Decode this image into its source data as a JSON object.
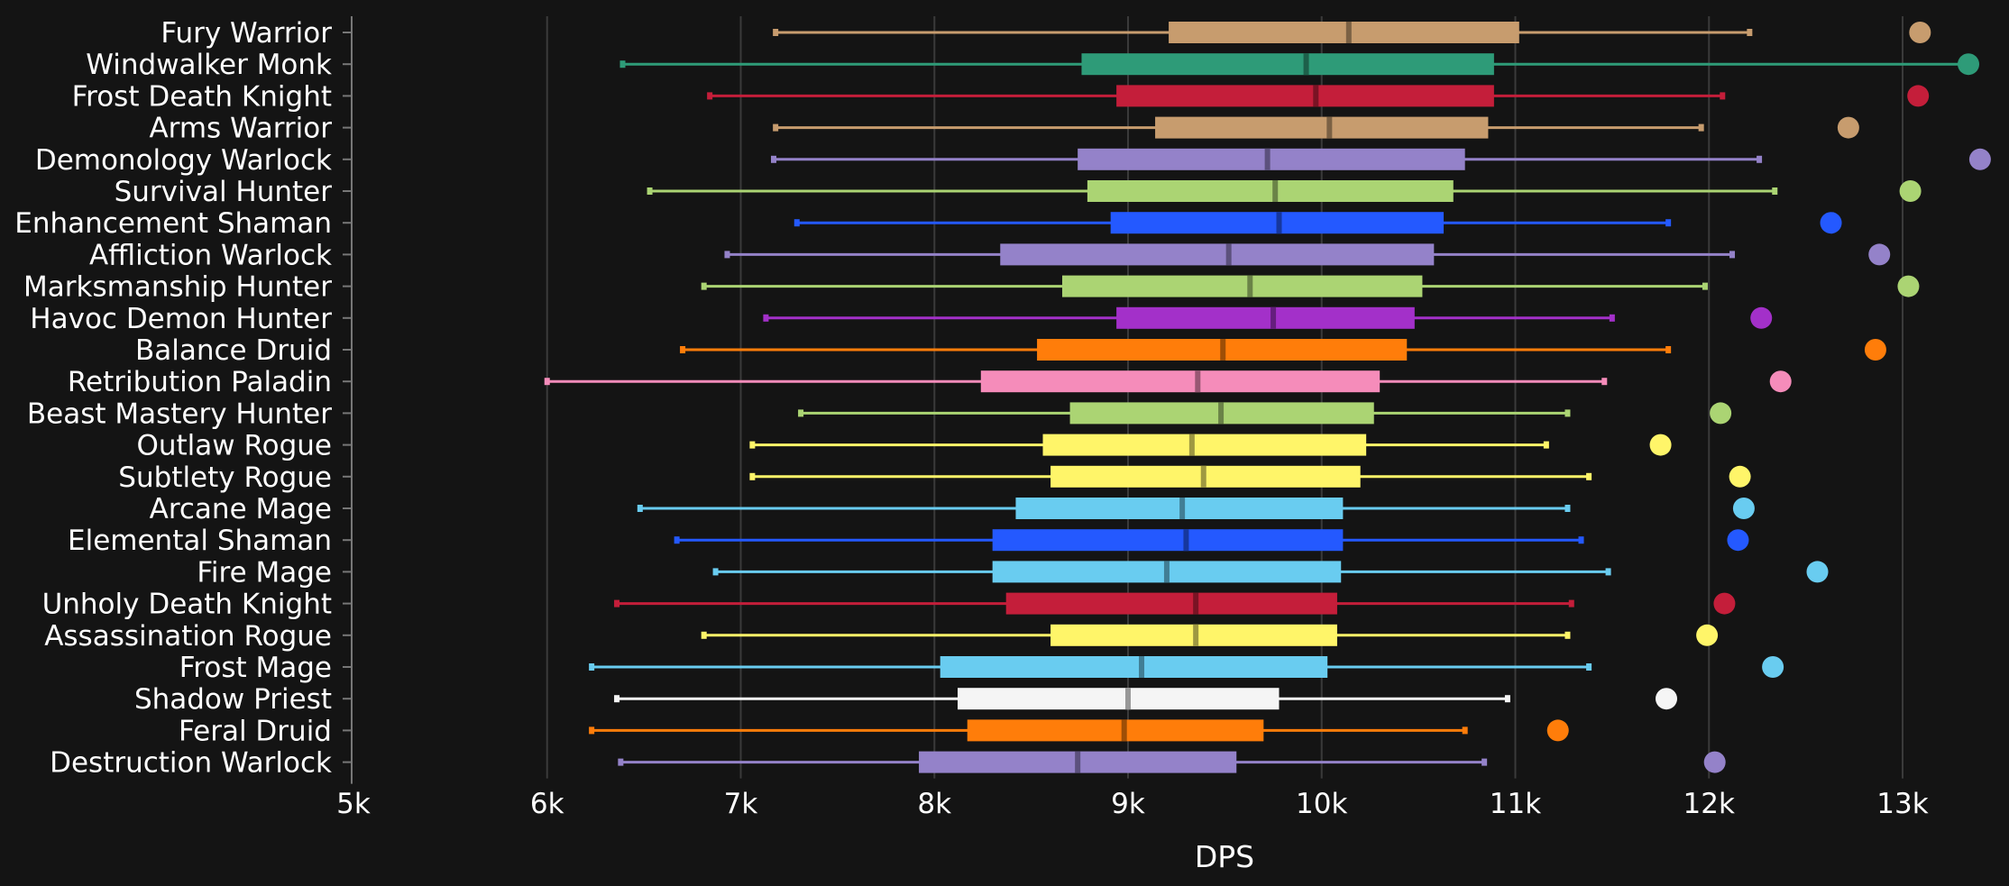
{
  "chart_data": {
    "type": "box",
    "title": "",
    "xlabel": "DPS",
    "ylabel": "",
    "xlim": [
      5000,
      13000
    ],
    "x_ticks": [
      {
        "value": 5000,
        "label": "5k"
      },
      {
        "value": 6000,
        "label": "6k"
      },
      {
        "value": 7000,
        "label": "7k"
      },
      {
        "value": 8000,
        "label": "8k"
      },
      {
        "value": 9000,
        "label": "9k"
      },
      {
        "value": 10000,
        "label": "10k"
      },
      {
        "value": 11000,
        "label": "11k"
      },
      {
        "value": 12000,
        "label": "12k"
      },
      {
        "value": 13000,
        "label": "13k"
      }
    ],
    "grid": "vertical",
    "series": [
      {
        "name": "Fury Warrior",
        "color": "#c79c6e",
        "min": 7180,
        "q1": 9210,
        "median": 10140,
        "q3": 11020,
        "max": 12210,
        "max_point": 13090
      },
      {
        "name": "Windwalker Monk",
        "color": "#2e9b78",
        "min": 6390,
        "q1": 8760,
        "median": 9920,
        "q3": 10890,
        "max": 13330,
        "max_point": 13340
      },
      {
        "name": "Frost Death Knight",
        "color": "#c41e3a",
        "min": 6840,
        "q1": 8940,
        "median": 9970,
        "q3": 10890,
        "max": 12070,
        "max_point": 13080
      },
      {
        "name": "Arms Warrior",
        "color": "#c79c6e",
        "min": 7180,
        "q1": 9140,
        "median": 10040,
        "q3": 10860,
        "max": 11960,
        "max_point": 12720
      },
      {
        "name": "Demonology Warlock",
        "color": "#9482c9",
        "min": 7170,
        "q1": 8740,
        "median": 9720,
        "q3": 10740,
        "max": 12260,
        "max_point": 13400
      },
      {
        "name": "Survival Hunter",
        "color": "#abd473",
        "min": 6530,
        "q1": 8790,
        "median": 9760,
        "q3": 10680,
        "max": 12340,
        "max_point": 13040
      },
      {
        "name": "Enhancement Shaman",
        "color": "#2459ff",
        "min": 7290,
        "q1": 8910,
        "median": 9780,
        "q3": 10630,
        "max": 11790,
        "max_point": 12630
      },
      {
        "name": "Affliction Warlock",
        "color": "#9482c9",
        "min": 6930,
        "q1": 8340,
        "median": 9520,
        "q3": 10580,
        "max": 12120,
        "max_point": 12880
      },
      {
        "name": "Marksmanship Hunter",
        "color": "#abd473",
        "min": 6810,
        "q1": 8660,
        "median": 9630,
        "q3": 10520,
        "max": 11980,
        "max_point": 13030
      },
      {
        "name": "Havoc Demon Hunter",
        "color": "#a330c9",
        "min": 7130,
        "q1": 8940,
        "median": 9750,
        "q3": 10480,
        "max": 11500,
        "max_point": 12270
      },
      {
        "name": "Balance Druid",
        "color": "#ff7d0a",
        "min": 6700,
        "q1": 8530,
        "median": 9490,
        "q3": 10440,
        "max": 11790,
        "max_point": 12860
      },
      {
        "name": "Retribution Paladin",
        "color": "#f58cba",
        "min": 6000,
        "q1": 8240,
        "median": 9360,
        "q3": 10300,
        "max": 11460,
        "max_point": 12370
      },
      {
        "name": "Beast Mastery Hunter",
        "color": "#abd473",
        "min": 7310,
        "q1": 8700,
        "median": 9480,
        "q3": 10270,
        "max": 11270,
        "max_point": 12060
      },
      {
        "name": "Outlaw Rogue",
        "color": "#fff569",
        "min": 7060,
        "q1": 8560,
        "median": 9330,
        "q3": 10230,
        "max": 11160,
        "max_point": 11750
      },
      {
        "name": "Subtlety Rogue",
        "color": "#fff569",
        "min": 7060,
        "q1": 8600,
        "median": 9390,
        "q3": 10200,
        "max": 11380,
        "max_point": 12160
      },
      {
        "name": "Arcane Mage",
        "color": "#69ccf0",
        "min": 6480,
        "q1": 8420,
        "median": 9280,
        "q3": 10110,
        "max": 11270,
        "max_point": 12180
      },
      {
        "name": "Elemental Shaman",
        "color": "#2459ff",
        "min": 6670,
        "q1": 8300,
        "median": 9300,
        "q3": 10110,
        "max": 11340,
        "max_point": 12150
      },
      {
        "name": "Fire Mage",
        "color": "#69ccf0",
        "min": 6870,
        "q1": 8300,
        "median": 9200,
        "q3": 10100,
        "max": 11480,
        "max_point": 12560
      },
      {
        "name": "Unholy Death Knight",
        "color": "#c41e3a",
        "min": 6360,
        "q1": 8370,
        "median": 9350,
        "q3": 10080,
        "max": 11290,
        "max_point": 12080
      },
      {
        "name": "Assassination Rogue",
        "color": "#fff569",
        "min": 6810,
        "q1": 8600,
        "median": 9350,
        "q3": 10080,
        "max": 11270,
        "max_point": 11990
      },
      {
        "name": "Frost Mage",
        "color": "#69ccf0",
        "min": 6230,
        "q1": 8030,
        "median": 9070,
        "q3": 10030,
        "max": 11380,
        "max_point": 12330
      },
      {
        "name": "Shadow Priest",
        "color": "#f5f5f5",
        "min": 6360,
        "q1": 8120,
        "median": 9000,
        "q3": 9780,
        "max": 10960,
        "max_point": 11780
      },
      {
        "name": "Feral Druid",
        "color": "#ff7d0a",
        "min": 6230,
        "q1": 8170,
        "median": 8980,
        "q3": 9700,
        "max": 10740,
        "max_point": 11220
      },
      {
        "name": "Destruction Warlock",
        "color": "#9482c9",
        "min": 6380,
        "q1": 7920,
        "median": 8740,
        "q3": 9560,
        "max": 10840,
        "max_point": 12030
      }
    ]
  }
}
